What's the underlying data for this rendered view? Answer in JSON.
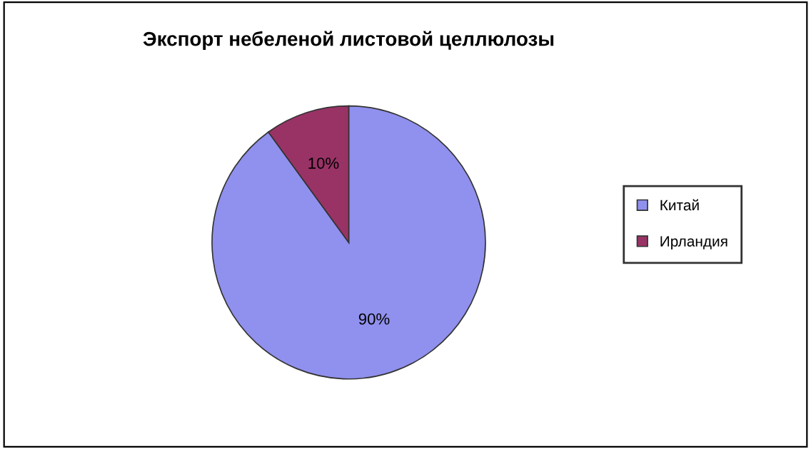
{
  "chart_data": {
    "type": "pie",
    "title": "Экспорт небеленой листовой целлюлозы",
    "categories": [
      "Китай",
      "Ирландия"
    ],
    "values": [
      90,
      10
    ],
    "value_labels": [
      "90%",
      "10%"
    ],
    "colors": [
      "#9090ee",
      "#993366"
    ],
    "legend": "right"
  }
}
